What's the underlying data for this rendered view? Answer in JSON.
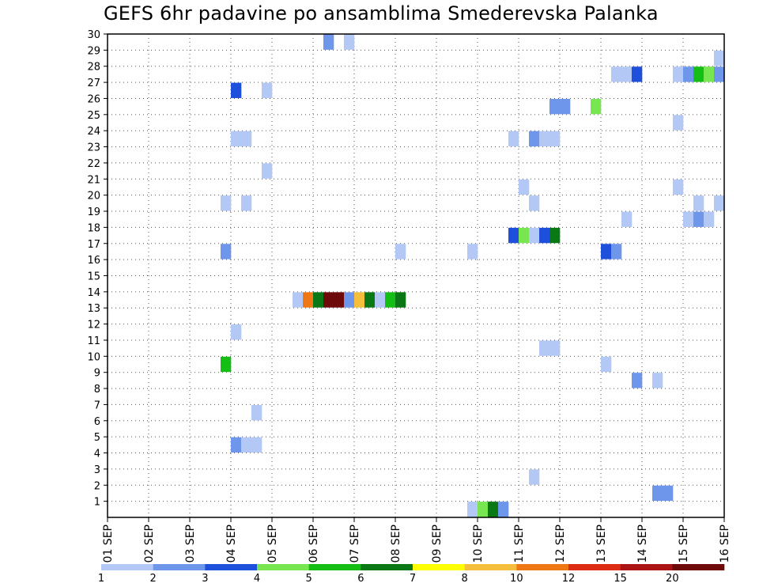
{
  "chart_data": {
    "type": "heatmap",
    "title": "GEFS 6hr padavine po ansamblima Smederevska Palanka",
    "xlabel": "",
    "ylabel": "",
    "x_tick_labels": [
      "01 SEP",
      "02 SEP",
      "03 SEP",
      "04 SEP",
      "05 SEP",
      "06 SEP",
      "07 SEP",
      "08 SEP",
      "09 SEP",
      "10 SEP",
      "11 SEP",
      "12 SEP",
      "13 SEP",
      "14 SEP",
      "15 SEP",
      "16 SEP"
    ],
    "y_tick_labels": [
      "1",
      "2",
      "3",
      "4",
      "5",
      "6",
      "7",
      "8",
      "9",
      "10",
      "11",
      "12",
      "13",
      "14",
      "15",
      "16",
      "17",
      "18",
      "19",
      "20",
      "21",
      "22",
      "23",
      "24",
      "25",
      "26",
      "27",
      "28",
      "29",
      "30"
    ],
    "xlim_days": [
      0,
      15
    ],
    "ylim": [
      0,
      30
    ],
    "time_step_hours": 6,
    "grid": true,
    "colorbar": {
      "labels": [
        "1",
        "2",
        "3",
        "4",
        "5",
        "6",
        "7",
        "8",
        "10",
        "12",
        "15",
        "20"
      ],
      "colors": [
        "#b4c8f5",
        "#6e96eb",
        "#1e50dc",
        "#78e650",
        "#14be14",
        "#0a7814",
        "#ffff00",
        "#f5be3c",
        "#f07814",
        "#dc2d14",
        "#aa1414",
        "#6e0a0a"
      ]
    },
    "cells": [
      {
        "member": 30,
        "step": 21,
        "value": 2.5
      },
      {
        "member": 30,
        "step": 23,
        "value": 1.5
      },
      {
        "member": 29,
        "step": 59,
        "value": 1.5
      },
      {
        "member": 28,
        "step": 49,
        "value": 1.5
      },
      {
        "member": 28,
        "step": 50,
        "value": 1.5
      },
      {
        "member": 28,
        "step": 51,
        "value": 3.5
      },
      {
        "member": 28,
        "step": 55,
        "value": 1.5
      },
      {
        "member": 28,
        "step": 56,
        "value": 2.5
      },
      {
        "member": 28,
        "step": 57,
        "value": 5.5
      },
      {
        "member": 28,
        "step": 58,
        "value": 4.5
      },
      {
        "member": 28,
        "step": 59,
        "value": 2.5
      },
      {
        "member": 27,
        "step": 12,
        "value": 3.5
      },
      {
        "member": 27,
        "step": 15,
        "value": 1.5
      },
      {
        "member": 26,
        "step": 43,
        "value": 2.5
      },
      {
        "member": 26,
        "step": 44,
        "value": 2.5
      },
      {
        "member": 26,
        "step": 47,
        "value": 4.5
      },
      {
        "member": 25,
        "step": 55,
        "value": 1.5
      },
      {
        "member": 24,
        "step": 12,
        "value": 1.5
      },
      {
        "member": 24,
        "step": 13,
        "value": 1.5
      },
      {
        "member": 24,
        "step": 39,
        "value": 1.5
      },
      {
        "member": 24,
        "step": 41,
        "value": 2.5
      },
      {
        "member": 24,
        "step": 42,
        "value": 1.5
      },
      {
        "member": 24,
        "step": 43,
        "value": 1.5
      },
      {
        "member": 22,
        "step": 15,
        "value": 1.5
      },
      {
        "member": 21,
        "step": 40,
        "value": 1.5
      },
      {
        "member": 21,
        "step": 55,
        "value": 1.5
      },
      {
        "member": 20,
        "step": 11,
        "value": 1.5
      },
      {
        "member": 20,
        "step": 13,
        "value": 1.5
      },
      {
        "member": 20,
        "step": 41,
        "value": 1.5
      },
      {
        "member": 20,
        "step": 57,
        "value": 1.5
      },
      {
        "member": 20,
        "step": 59,
        "value": 1.5
      },
      {
        "member": 19,
        "step": 50,
        "value": 1.5
      },
      {
        "member": 19,
        "step": 56,
        "value": 1.5
      },
      {
        "member": 19,
        "step": 57,
        "value": 2.5
      },
      {
        "member": 19,
        "step": 58,
        "value": 1.5
      },
      {
        "member": 18,
        "step": 39,
        "value": 3.5
      },
      {
        "member": 18,
        "step": 40,
        "value": 4.5
      },
      {
        "member": 18,
        "step": 41,
        "value": 1.5
      },
      {
        "member": 18,
        "step": 42,
        "value": 3.5
      },
      {
        "member": 18,
        "step": 43,
        "value": 6.5
      },
      {
        "member": 17,
        "step": 11,
        "value": 2.5
      },
      {
        "member": 17,
        "step": 28,
        "value": 1.5
      },
      {
        "member": 17,
        "step": 35,
        "value": 1.5
      },
      {
        "member": 17,
        "step": 48,
        "value": 3.5
      },
      {
        "member": 17,
        "step": 49,
        "value": 2.5
      },
      {
        "member": 14,
        "step": 18,
        "value": 1.5
      },
      {
        "member": 14,
        "step": 19,
        "value": 11
      },
      {
        "member": 14,
        "step": 20,
        "value": 6.5
      },
      {
        "member": 14,
        "step": 21,
        "value": 22
      },
      {
        "member": 14,
        "step": 22,
        "value": 22
      },
      {
        "member": 14,
        "step": 23,
        "value": 2.5
      },
      {
        "member": 14,
        "step": 24,
        "value": 9
      },
      {
        "member": 14,
        "step": 25,
        "value": 6.5
      },
      {
        "member": 14,
        "step": 26,
        "value": 1.5
      },
      {
        "member": 14,
        "step": 27,
        "value": 5.5
      },
      {
        "member": 14,
        "step": 28,
        "value": 6.5
      },
      {
        "member": 12,
        "step": 12,
        "value": 1.5
      },
      {
        "member": 11,
        "step": 42,
        "value": 1.5
      },
      {
        "member": 11,
        "step": 43,
        "value": 1.5
      },
      {
        "member": 10,
        "step": 11,
        "value": 5.5
      },
      {
        "member": 10,
        "step": 48,
        "value": 1.5
      },
      {
        "member": 9,
        "step": 51,
        "value": 2.5
      },
      {
        "member": 9,
        "step": 53,
        "value": 1.5
      },
      {
        "member": 7,
        "step": 14,
        "value": 1.5
      },
      {
        "member": 5,
        "step": 12,
        "value": 2.5
      },
      {
        "member": 5,
        "step": 13,
        "value": 1.5
      },
      {
        "member": 5,
        "step": 14,
        "value": 1.5
      },
      {
        "member": 3,
        "step": 41,
        "value": 1.5
      },
      {
        "member": 2,
        "step": 53,
        "value": 2.5
      },
      {
        "member": 2,
        "step": 54,
        "value": 2.5
      },
      {
        "member": 1,
        "step": 35,
        "value": 1.5
      },
      {
        "member": 1,
        "step": 36,
        "value": 4.5
      },
      {
        "member": 1,
        "step": 37,
        "value": 6.5
      },
      {
        "member": 1,
        "step": 38,
        "value": 2.5
      }
    ]
  }
}
